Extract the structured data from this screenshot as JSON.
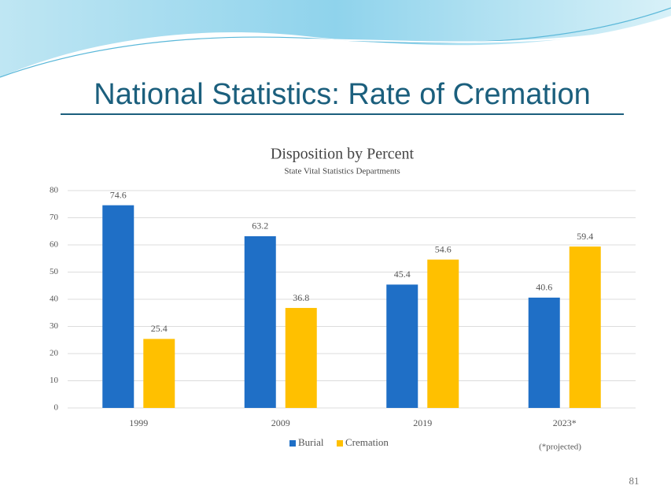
{
  "slide": {
    "title": "National Statistics: Rate of Cremation",
    "page_number": "81"
  },
  "chart_data": {
    "type": "bar",
    "title": "Disposition by Percent",
    "subtitle": "State Vital Statistics Departments",
    "categories": [
      "1999",
      "2009",
      "2019",
      "2023*"
    ],
    "series": [
      {
        "name": "Burial",
        "color": "#1f6fc6",
        "values": [
          74.6,
          63.2,
          45.4,
          40.6
        ]
      },
      {
        "name": "Cremation",
        "color": "#ffc000",
        "values": [
          25.4,
          36.8,
          54.6,
          59.4
        ]
      }
    ],
    "ylim": [
      0,
      80
    ],
    "yticks": [
      0,
      10,
      20,
      30,
      40,
      50,
      60,
      70,
      80
    ],
    "grid": true,
    "legend": "bottom",
    "annotation": "(*projected)"
  }
}
